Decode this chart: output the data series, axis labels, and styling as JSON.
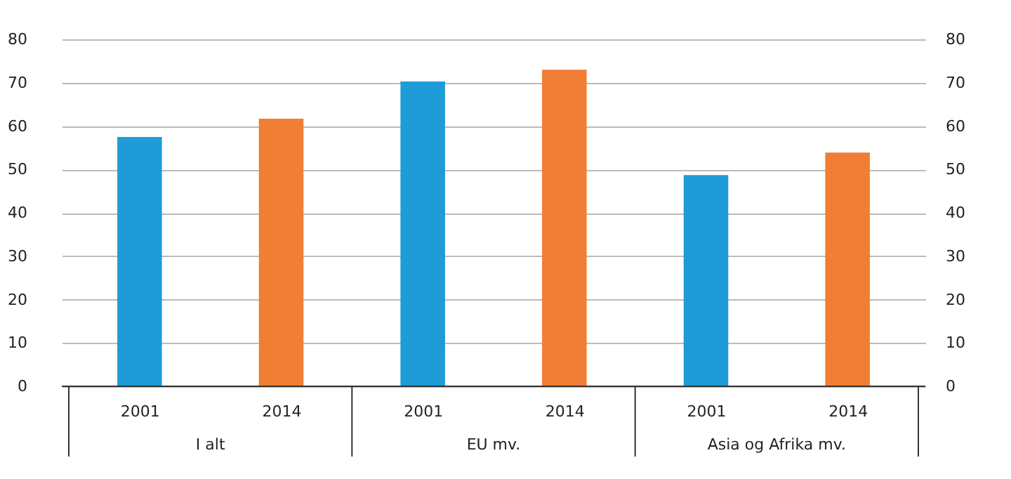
{
  "chart_data": {
    "type": "bar",
    "categories": [
      "2001",
      "2014",
      "2001",
      "2014",
      "2001",
      "2014"
    ],
    "values": [
      57.5,
      61.7,
      70.3,
      73.0,
      48.7,
      53.9
    ],
    "colors": [
      "#1f9cd8",
      "#f07e35",
      "#1f9cd8",
      "#f07e35",
      "#1f9cd8",
      "#f07e35"
    ],
    "annotations": [
      "I alt",
      "EU mv.",
      "Asia og Afrika mv."
    ],
    "ylim": [
      0,
      80
    ],
    "yticks": [
      0,
      10,
      20,
      30,
      40,
      50,
      60,
      70,
      80
    ],
    "y2lim": [
      0,
      80
    ],
    "y2ticks": [
      0,
      10,
      20,
      30,
      40,
      50,
      60,
      70,
      80
    ],
    "grid": "y",
    "legend": false
  }
}
